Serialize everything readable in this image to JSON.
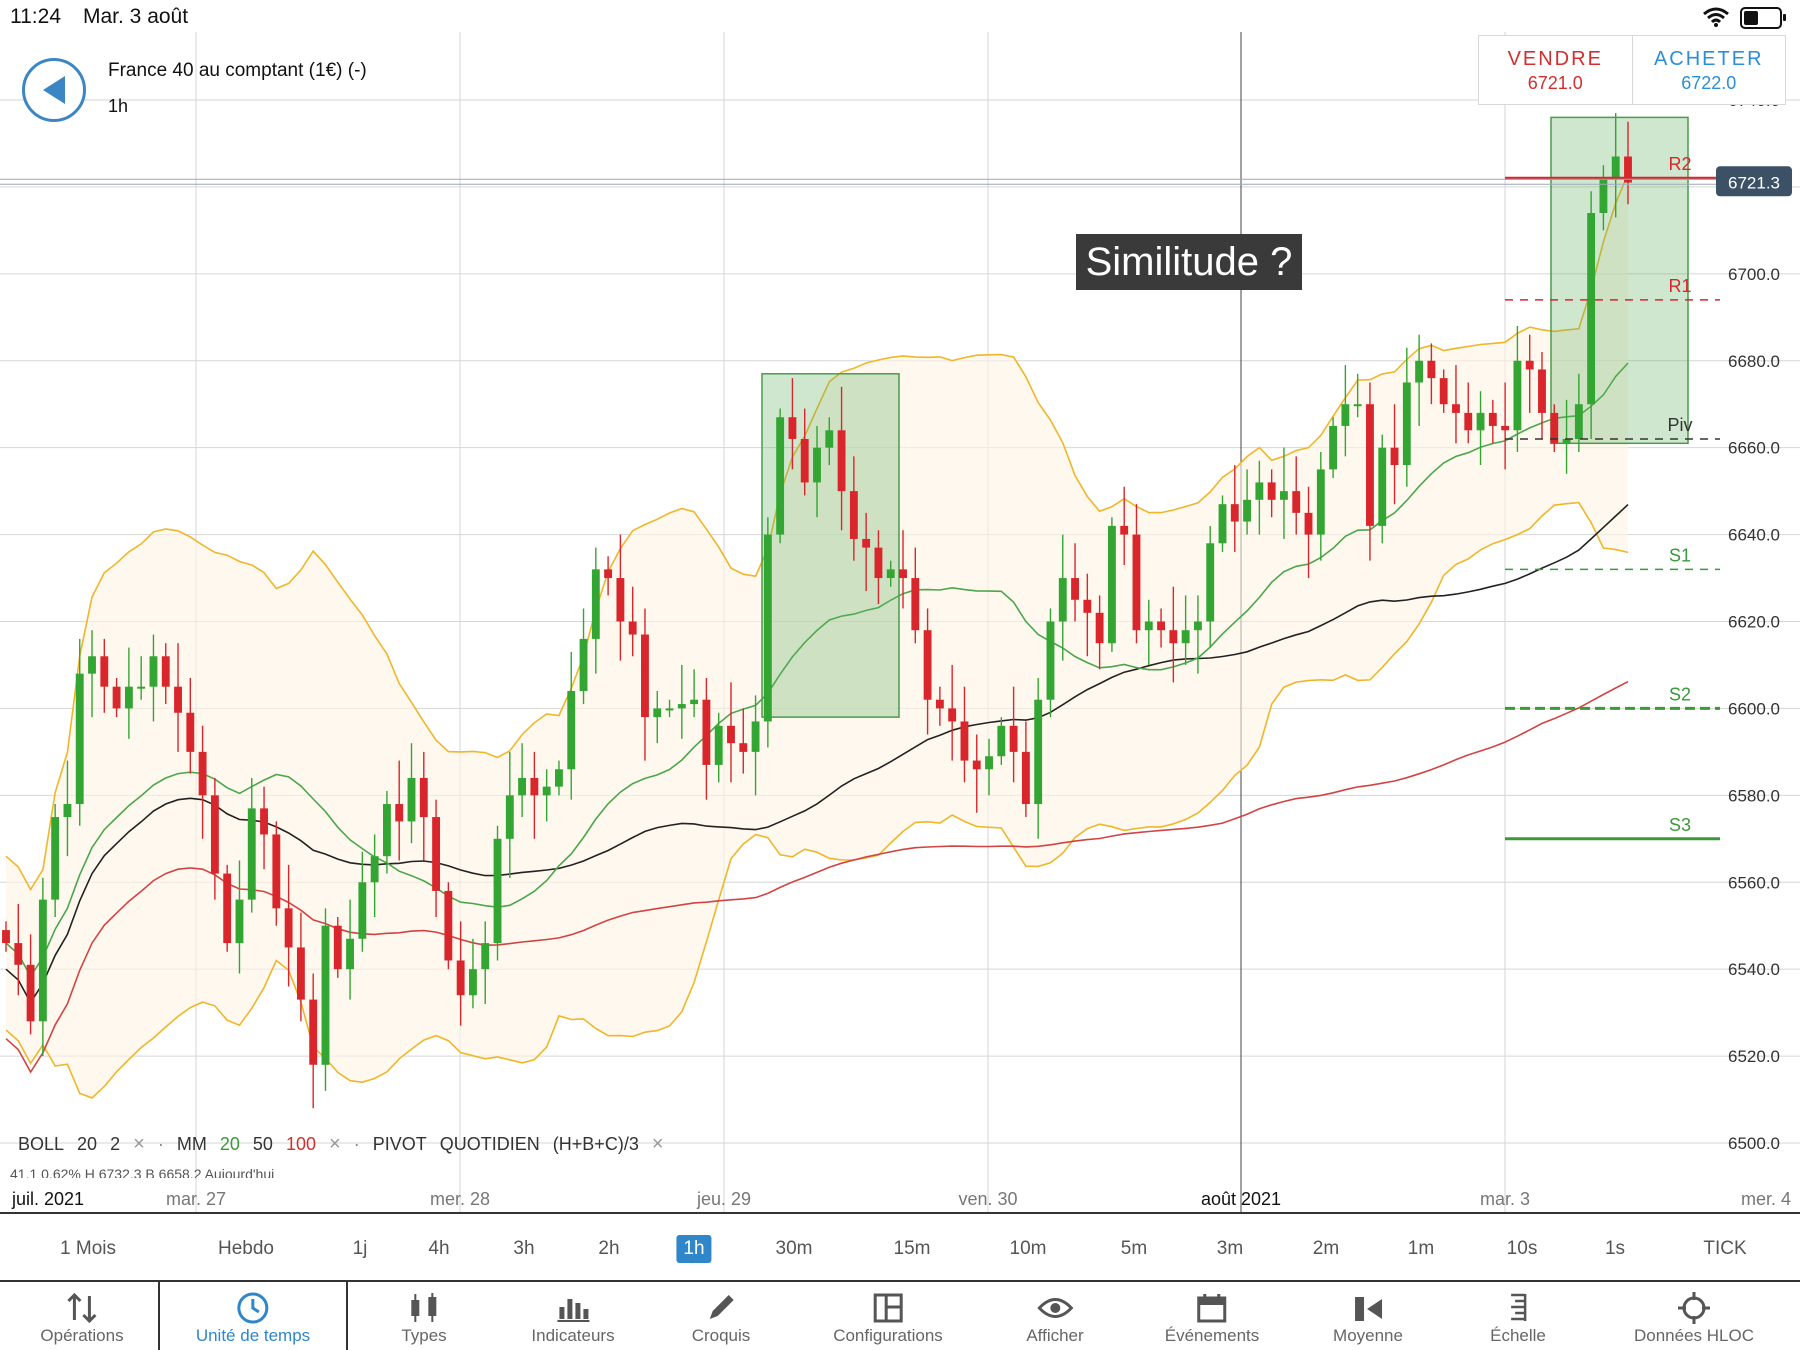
{
  "status_bar": {
    "time": "11:24",
    "date": "Mar. 3 août",
    "battery_level": 0.45
  },
  "instrument": {
    "name": "France 40 au comptant (1€) (-)",
    "timeframe": "1h"
  },
  "trade": {
    "sell_label": "VENDRE",
    "sell_price": "6721.0",
    "buy_label": "ACHETER",
    "buy_price": "6722.0"
  },
  "annotation": "Similitude ?",
  "chart_data": {
    "type": "candlestick",
    "title": "",
    "price_axis": {
      "ticks": [
        "6740.0",
        "6720.0",
        "6700.0",
        "6680.0",
        "6660.0",
        "6640.0",
        "6620.0",
        "6600.0",
        "6580.0",
        "6560.0",
        "6540.0",
        "6520.0",
        "6500.0"
      ],
      "min": 6500,
      "max": 6740
    },
    "time_axis": {
      "ticks": [
        "juil. 2021",
        "mar. 27",
        "mer. 28",
        "jeu. 29",
        "ven. 30",
        "août 2021",
        "mar. 3",
        "mer. 4"
      ]
    },
    "current_price_label": "6721.3",
    "current_price": 6721.3,
    "pivot_levels": [
      {
        "name": "R2",
        "value": 6722
      },
      {
        "name": "R1",
        "value": 6694
      },
      {
        "name": "Piv",
        "value": 6662
      },
      {
        "name": "S1",
        "value": 6632
      },
      {
        "name": "S2",
        "value": 6600
      },
      {
        "name": "S3",
        "value": 6570
      }
    ],
    "candles_close": [
      6546,
      6541,
      6528,
      6556,
      6575,
      6578,
      6608,
      6612,
      6605,
      6600,
      6605,
      6605,
      6612,
      6605,
      6599,
      6590,
      6580,
      6562,
      6546,
      6556,
      6577,
      6571,
      6554,
      6545,
      6533,
      6518,
      6550,
      6540,
      6547,
      6560,
      6566,
      6578,
      6574,
      6584,
      6575,
      6558,
      6542,
      6534,
      6540,
      6546,
      6570,
      6580,
      6584,
      6580,
      6582,
      6586,
      6604,
      6616,
      6632,
      6630,
      6620,
      6617,
      6598,
      6600,
      6600,
      6601,
      6602,
      6587,
      6596,
      6592,
      6590,
      6597,
      6640,
      6667,
      6662,
      6652,
      6660,
      6664,
      6650,
      6639,
      6637,
      6630,
      6632,
      6630,
      6618,
      6602,
      6600,
      6597,
      6588,
      6586,
      6589,
      6596,
      6590,
      6578,
      6602,
      6620,
      6630,
      6625,
      6622,
      6615,
      6642,
      6640,
      6618,
      6620,
      6618,
      6615,
      6618,
      6620,
      6638,
      6647,
      6643,
      6648,
      6652,
      6648,
      6650,
      6645,
      6640,
      6655,
      6665,
      6670,
      6670,
      6642,
      6660,
      6656,
      6675,
      6680,
      6676,
      6670,
      6668,
      6664,
      6668,
      6665,
      6664,
      6680,
      6678,
      6668,
      6661,
      6662,
      6670,
      6714,
      6722,
      6727,
      6721
    ]
  },
  "indicator_legend": {
    "boll": "BOLL",
    "boll_p1": "20",
    "boll_p2": "2",
    "mm": "MM",
    "mm_p1": "20",
    "mm_p2": "50",
    "mm_p3": "100",
    "pivot": "PIVOT",
    "pivot_p1": "QUOTIDIEN",
    "pivot_p2": "(H+B+C)/3",
    "remove": "×"
  },
  "info_line": "41.1      0.62%     H 6732.3   B 6658.2   Aujourd'hui",
  "timeframes": [
    "1 Mois",
    "Hebdo",
    "1j",
    "4h",
    "3h",
    "2h",
    "1h",
    "30m",
    "15m",
    "10m",
    "5m",
    "3m",
    "2m",
    "1m",
    "10s",
    "1s",
    "TICK"
  ],
  "active_timeframe": "1h",
  "toolbar": [
    {
      "label": "Opérations",
      "icon": "arrows-updown-icon"
    },
    {
      "label": "Unité de temps",
      "icon": "clock-icon"
    },
    {
      "label": "Types",
      "icon": "candles-icon"
    },
    {
      "label": "Indicateurs",
      "icon": "bars-icon"
    },
    {
      "label": "Croquis",
      "icon": "pencil-icon"
    },
    {
      "label": "Configurations",
      "icon": "layout-icon"
    },
    {
      "label": "Afficher",
      "icon": "eye-icon"
    },
    {
      "label": "Événements",
      "icon": "calendar-icon"
    },
    {
      "label": "Moyenne",
      "icon": "average-icon"
    },
    {
      "label": "Échelle",
      "icon": "scale-icon"
    },
    {
      "label": "Données HLOC",
      "icon": "crosshair-icon"
    }
  ],
  "colors": {
    "up": "#33a532",
    "down": "#d9262c",
    "bollinger": "#f0b62a",
    "mm20": "#4ca64c",
    "mm50": "#222222",
    "mm100": "#d24444",
    "accent": "#2f86c8"
  }
}
